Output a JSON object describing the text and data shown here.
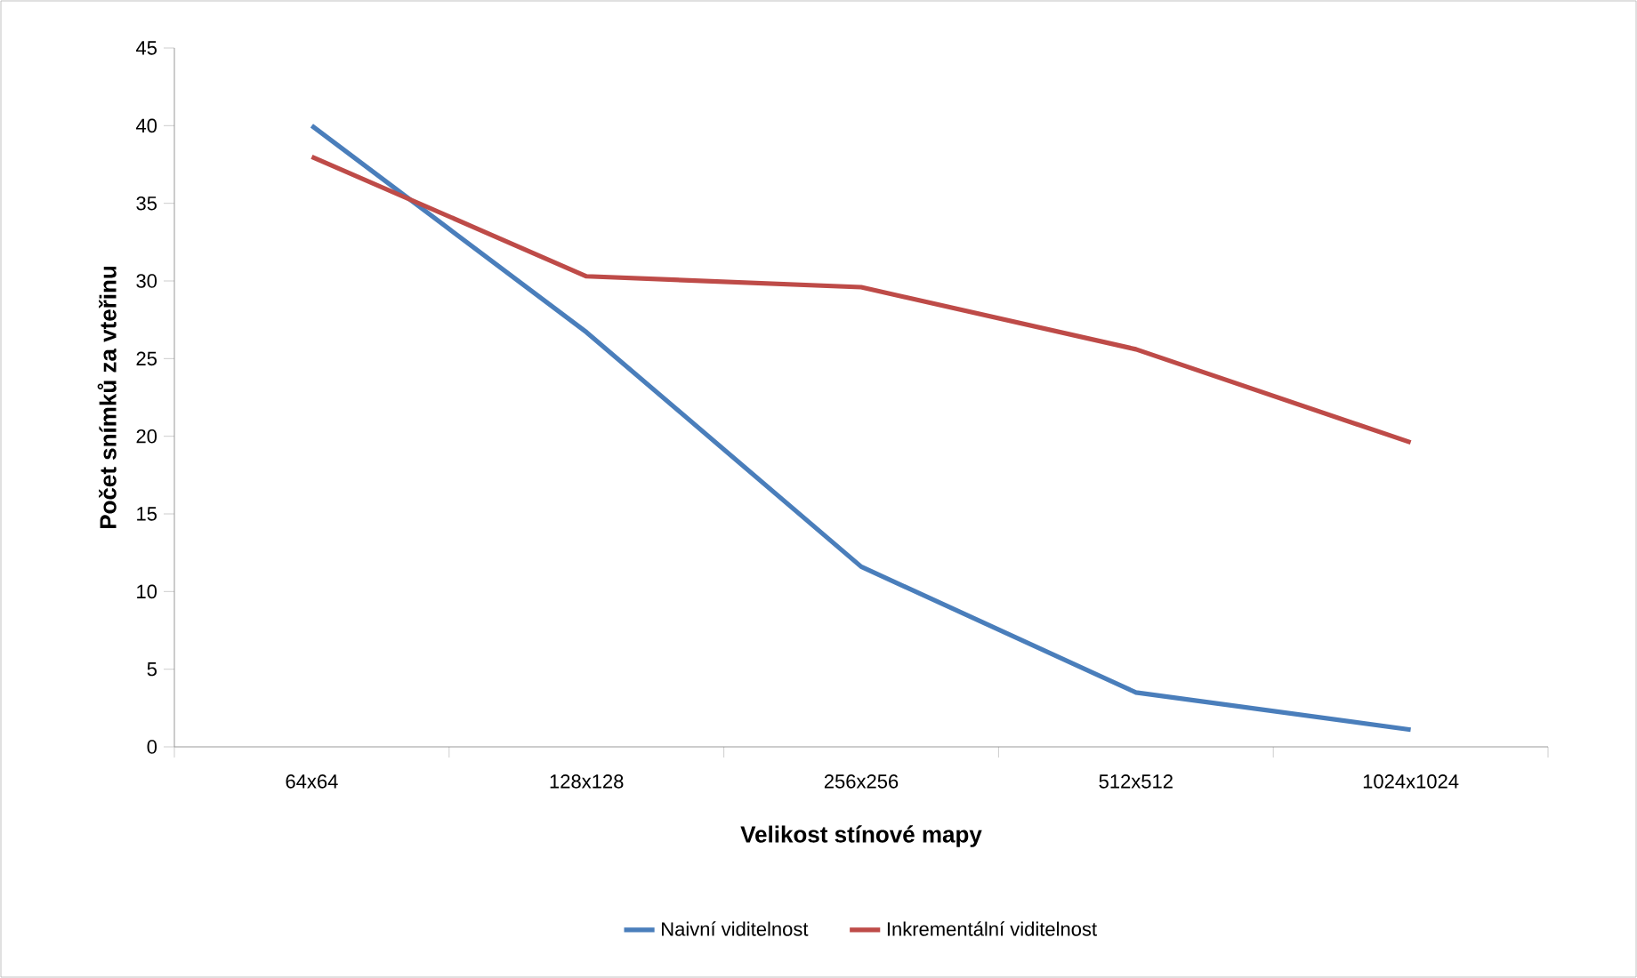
{
  "chart_data": {
    "type": "line",
    "xlabel": "Velikost stínové mapy",
    "ylabel": "Počet snímků za vteřinu",
    "categories": [
      "64x64",
      "128x128",
      "256x256",
      "512x512",
      "1024x1024"
    ],
    "series": [
      {
        "name": "Naivní viditelnost",
        "color": "#4a7ebb",
        "values": [
          40,
          26.7,
          11.6,
          3.5,
          1.1
        ]
      },
      {
        "name": "Inkrementální viditelnost",
        "color": "#be4b48",
        "values": [
          38.0,
          30.3,
          29.6,
          25.6,
          19.6
        ]
      }
    ],
    "ylim": [
      0,
      45
    ],
    "yticks": [
      0,
      5,
      10,
      15,
      20,
      25,
      30,
      35,
      40,
      45
    ],
    "legend": "bottom"
  }
}
